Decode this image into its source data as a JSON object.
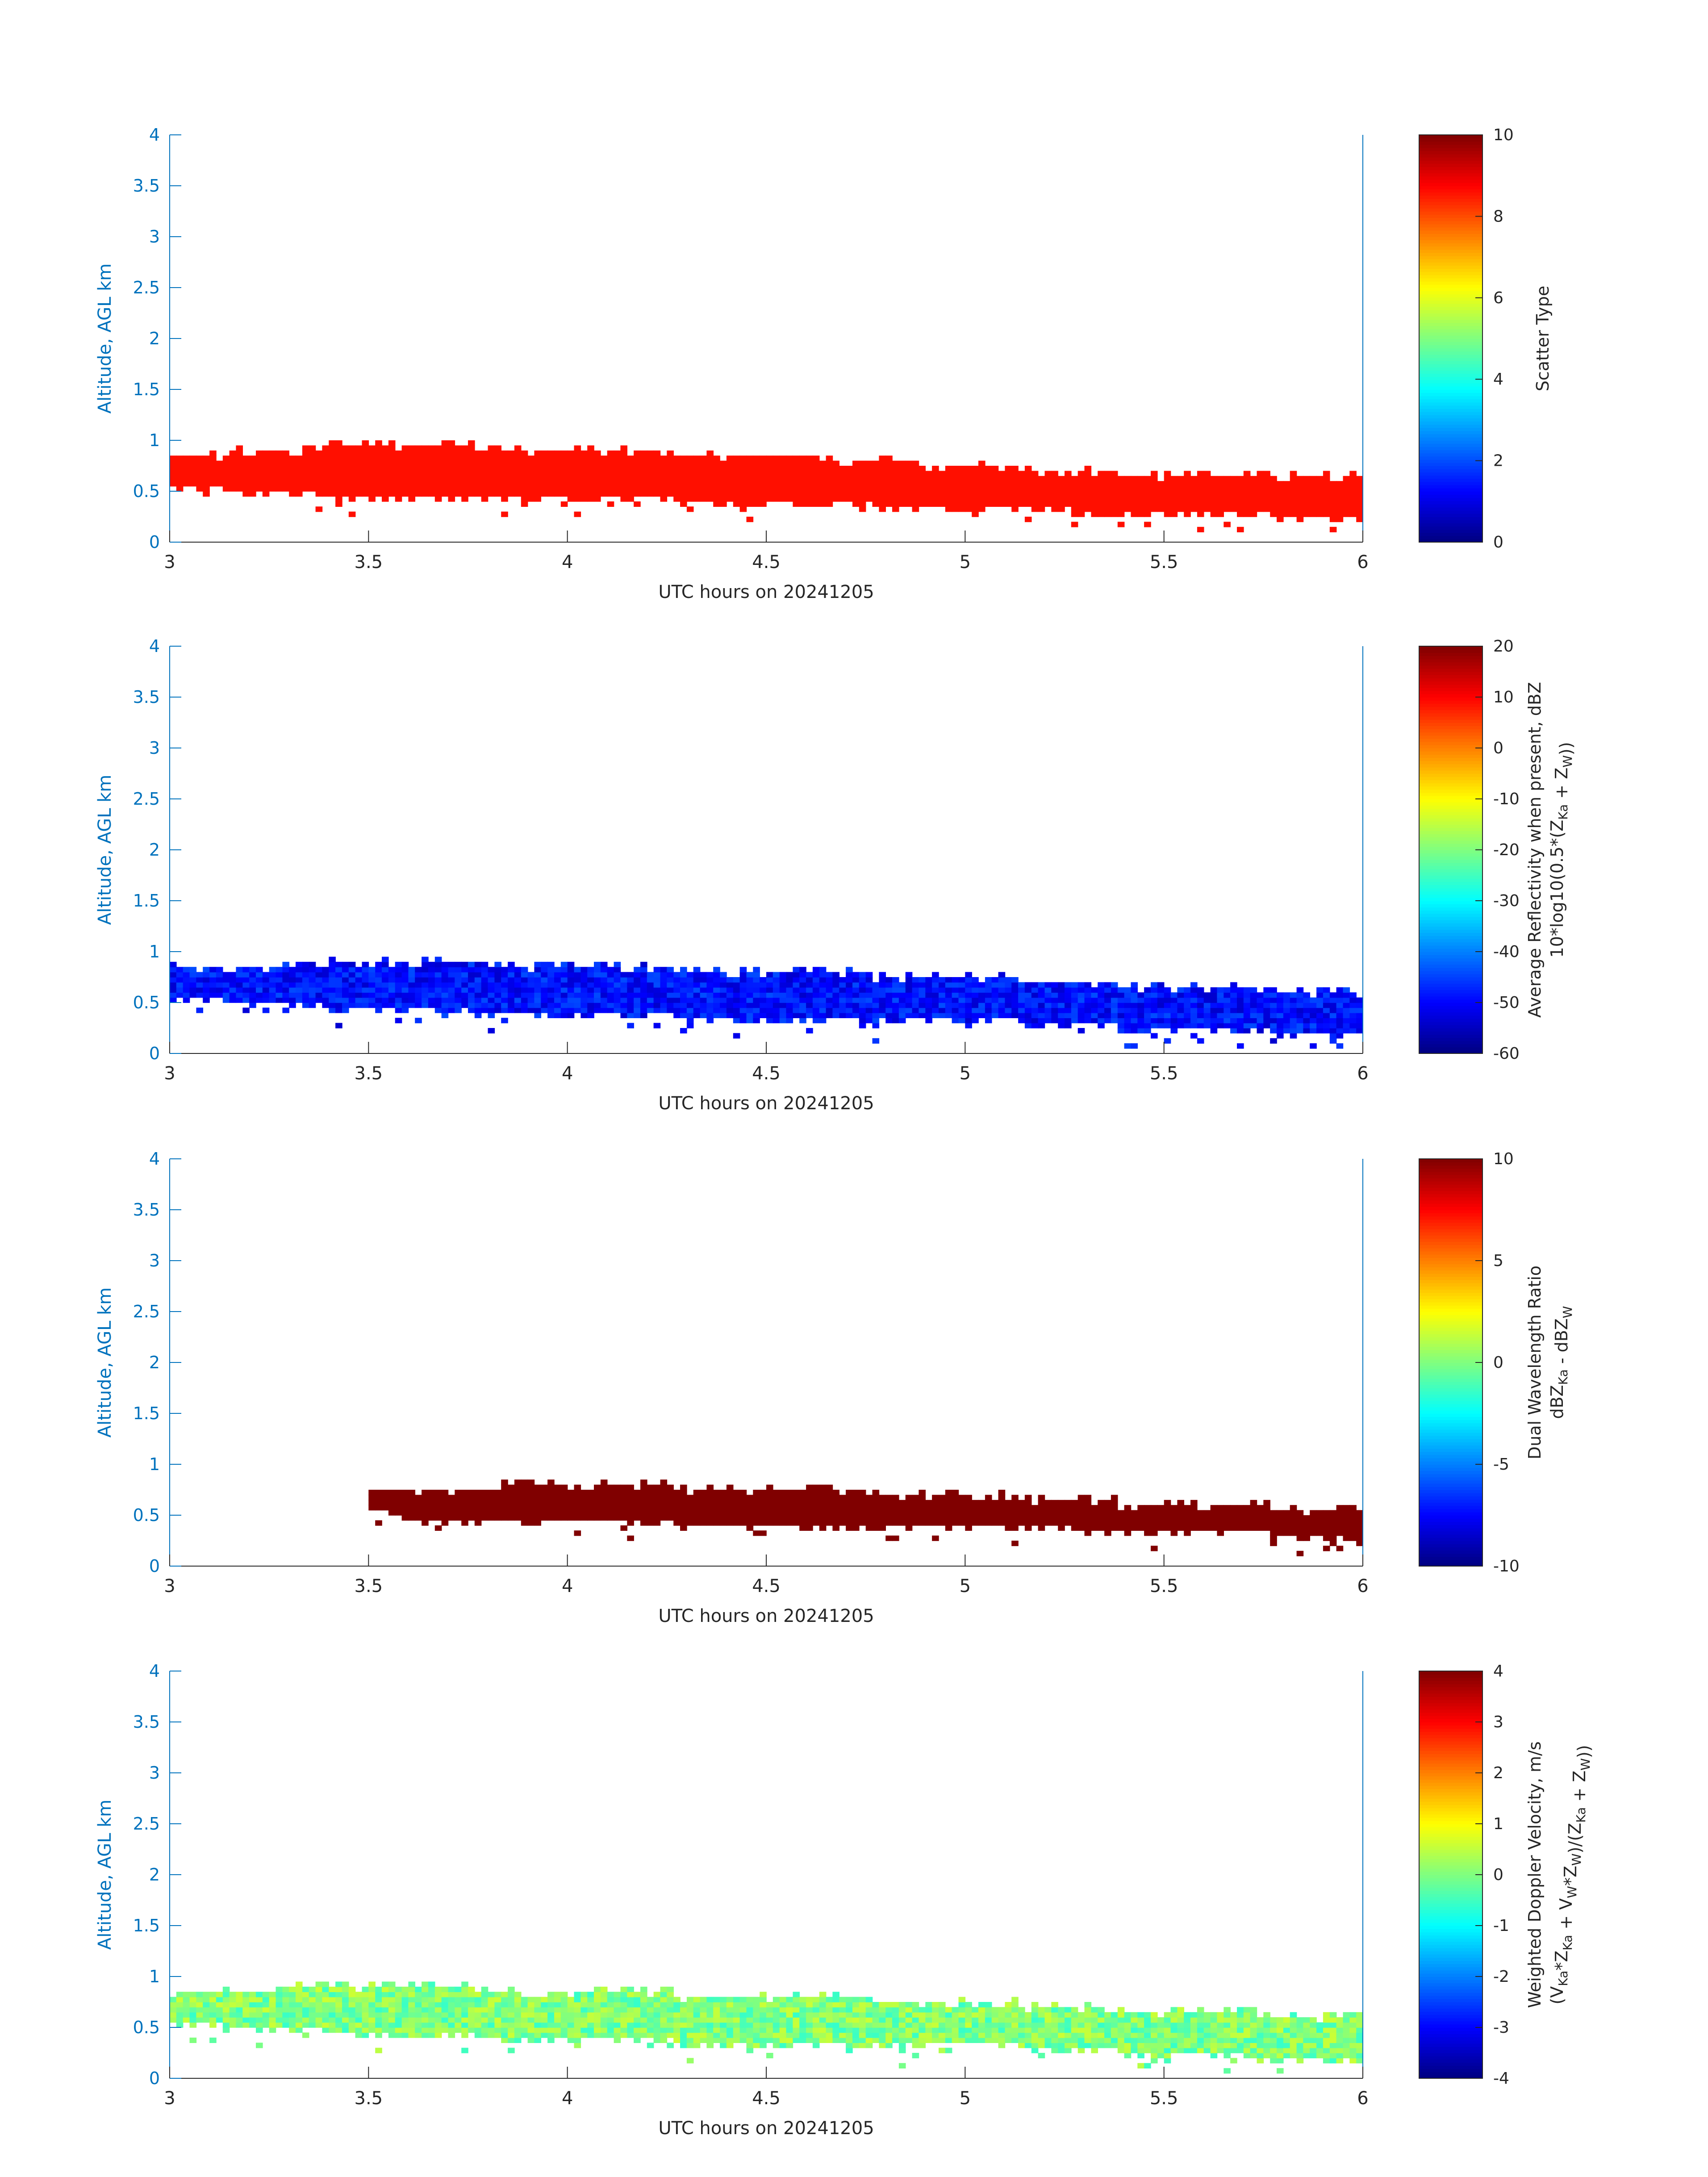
{
  "colors": {
    "axis_left": "#0072BD",
    "axis_right": "#0072BD",
    "text": "#262626",
    "colormap": "jet"
  },
  "chart_data": [
    {
      "type": "heatmap",
      "title": "",
      "xlabel": "UTC hours on 20241205",
      "ylabel": "Altitude, AGL km",
      "xlim": [
        3,
        6
      ],
      "ylim": [
        0,
        4
      ],
      "x_ticks": [
        "3",
        "3.5",
        "4",
        "4.5",
        "5",
        "5.5",
        "6"
      ],
      "y_ticks": [
        "0",
        "0.5",
        "1",
        "1.5",
        "2",
        "2.5",
        "3",
        "3.5",
        "4"
      ],
      "colorbar": {
        "label": "Scatter Type",
        "label_line2": "",
        "range": [
          0,
          10
        ],
        "ticks": [
          "0",
          "2",
          "4",
          "6",
          "8",
          "10"
        ]
      },
      "field": {
        "name": "scatter_type",
        "typical_value": 8.6,
        "spread": 0.0
      },
      "layer": {
        "hours": [
          3.0,
          3.5,
          4.0,
          4.5,
          5.0,
          5.5,
          6.0
        ],
        "base_km": [
          0.55,
          0.45,
          0.45,
          0.4,
          0.35,
          0.3,
          0.25
        ],
        "top_km": [
          0.85,
          0.95,
          0.9,
          0.85,
          0.75,
          0.65,
          0.65
        ]
      }
    },
    {
      "type": "heatmap",
      "title": "",
      "xlabel": "UTC hours on 20241205",
      "ylabel": "Altitude, AGL km",
      "xlim": [
        3,
        6
      ],
      "ylim": [
        0,
        4
      ],
      "x_ticks": [
        "3",
        "3.5",
        "4",
        "4.5",
        "5",
        "5.5",
        "6"
      ],
      "y_ticks": [
        "0",
        "0.5",
        "1",
        "1.5",
        "2",
        "2.5",
        "3",
        "3.5",
        "4"
      ],
      "colorbar": {
        "label": "Average Reflectivity when present, dBZ",
        "label_line2": "10*log10(0.5*(Z_Ka + Z_W))",
        "range": [
          -60,
          20
        ],
        "ticks": [
          "-60",
          "-50",
          "-40",
          "-30",
          "-20",
          "-10",
          "0",
          "10",
          "20"
        ]
      },
      "field": {
        "name": "reflectivity_dBZ",
        "typical_value": -49,
        "spread": 5
      },
      "layer": {
        "hours": [
          3.0,
          3.5,
          4.0,
          4.5,
          5.0,
          5.5,
          6.0
        ],
        "base_km": [
          0.55,
          0.45,
          0.4,
          0.35,
          0.35,
          0.25,
          0.2
        ],
        "top_km": [
          0.85,
          0.9,
          0.85,
          0.8,
          0.75,
          0.65,
          0.6
        ]
      }
    },
    {
      "type": "heatmap",
      "title": "",
      "xlabel": "UTC hours on 20241205",
      "ylabel": "Altitude, AGL km",
      "xlim": [
        3,
        6
      ],
      "ylim": [
        0,
        4
      ],
      "x_ticks": [
        "3",
        "3.5",
        "4",
        "4.5",
        "5",
        "5.5",
        "6"
      ],
      "y_ticks": [
        "0",
        "0.5",
        "1",
        "1.5",
        "2",
        "2.5",
        "3",
        "3.5",
        "4"
      ],
      "colorbar": {
        "label": "Dual Wavelength Ratio",
        "label_line2": "dBZ_Ka - dBZ_W",
        "range": [
          -10,
          10
        ],
        "ticks": [
          "-10",
          "-5",
          "0",
          "5",
          "10"
        ]
      },
      "field": {
        "name": "dual_wavelength_ratio",
        "typical_value": 10,
        "spread": 0
      },
      "layer": {
        "hours": [
          3.5,
          3.65,
          4.0,
          4.5,
          5.0,
          5.5,
          6.0
        ],
        "base_km": [
          0.55,
          0.45,
          0.45,
          0.4,
          0.4,
          0.35,
          0.3
        ],
        "top_km": [
          0.75,
          0.75,
          0.8,
          0.75,
          0.7,
          0.6,
          0.55
        ]
      }
    },
    {
      "type": "heatmap",
      "title": "",
      "xlabel": "UTC hours on 20241205",
      "ylabel": "Altitude, AGL km",
      "xlim": [
        3,
        6
      ],
      "ylim": [
        0,
        4
      ],
      "x_ticks": [
        "3",
        "3.5",
        "4",
        "4.5",
        "5",
        "5.5",
        "6"
      ],
      "y_ticks": [
        "0",
        "0.5",
        "1",
        "1.5",
        "2",
        "2.5",
        "3",
        "3.5",
        "4"
      ],
      "colorbar": {
        "label": "Weighted Doppler Velocity, m/s",
        "label_line2": "(V_Ka*Z_Ka + V_W*Z_W)/(Z_Ka + Z_W))",
        "range": [
          -4,
          4
        ],
        "ticks": [
          "-4",
          "-3",
          "-2",
          "-1",
          "0",
          "1",
          "2",
          "3",
          "4"
        ]
      },
      "field": {
        "name": "doppler_velocity_ms",
        "typical_value": 0.0,
        "spread": 0.6
      },
      "layer": {
        "hours": [
          3.0,
          3.5,
          4.0,
          4.5,
          5.0,
          5.5,
          6.0
        ],
        "base_km": [
          0.55,
          0.45,
          0.4,
          0.35,
          0.35,
          0.25,
          0.2
        ],
        "top_km": [
          0.85,
          0.9,
          0.85,
          0.8,
          0.75,
          0.65,
          0.6
        ]
      }
    }
  ]
}
